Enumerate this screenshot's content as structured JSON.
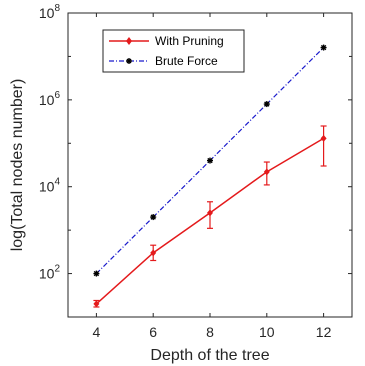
{
  "chart_data": {
    "type": "line",
    "title": "",
    "xlabel": "Depth of the tree",
    "ylabel": "log(Total nodes number)",
    "xlim": [
      3,
      13
    ],
    "ylim_log10": [
      1,
      8
    ],
    "yscale": "log",
    "x_ticks": [
      "4",
      "6",
      "8",
      "10",
      "12"
    ],
    "y_ticks": [
      {
        "base": "10",
        "exp": "2",
        "value": 100
      },
      {
        "base": "10",
        "exp": "4",
        "value": 10000
      },
      {
        "base": "10",
        "exp": "6",
        "value": 1000000
      },
      {
        "base": "10",
        "exp": "8",
        "value": 100000000
      }
    ],
    "grid": false,
    "legend_position": "top-center",
    "x": [
      4,
      6,
      8,
      10,
      12
    ],
    "series": [
      {
        "name": "With Pruning",
        "color": "#e41a1c",
        "line_style": "solid",
        "marker": "diamond",
        "values": [
          20,
          300,
          2500,
          22000,
          130000
        ],
        "error_low": [
          17,
          200,
          1100,
          11000,
          30000
        ],
        "error_high": [
          24,
          450,
          4500,
          37000,
          250000
        ]
      },
      {
        "name": "Brute Force",
        "color": "#1a1acc",
        "line_style": "dash-dot",
        "marker": "asterisk",
        "values": [
          100,
          2000,
          40000,
          800000,
          16000000
        ]
      }
    ]
  }
}
